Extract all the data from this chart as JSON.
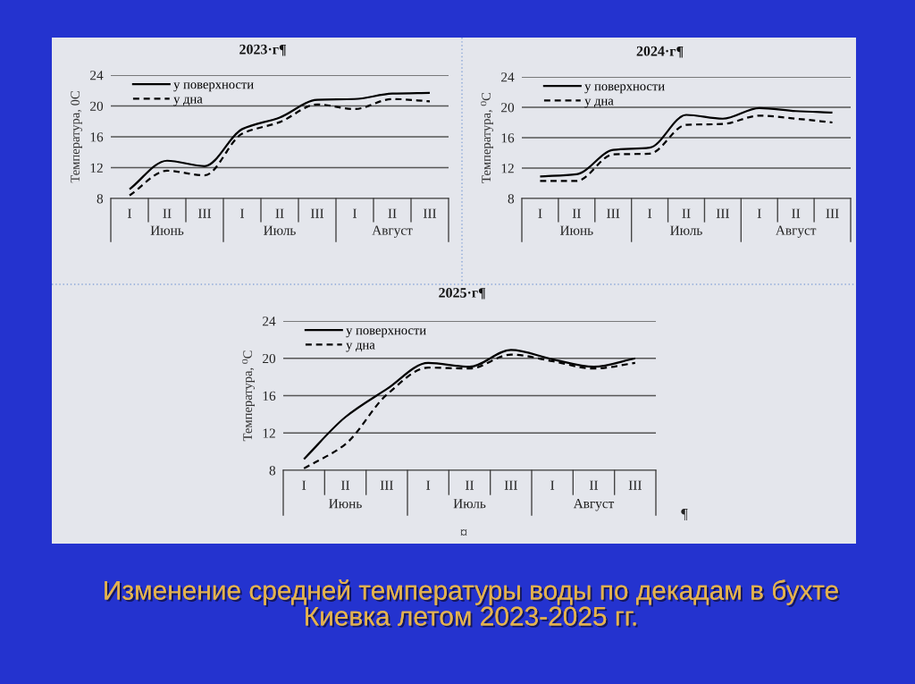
{
  "chart_data": [
    {
      "type": "line",
      "title": "2023·г¶",
      "ylabel": "Температура, 0С",
      "categories": [
        "I",
        "II",
        "III",
        "I",
        "II",
        "III",
        "I",
        "II",
        "III"
      ],
      "series": [
        {
          "name": "у поверхности",
          "color": "#000000",
          "line_style": "solid",
          "values": [
            9.2,
            12.9,
            12.2,
            17.0,
            18.5,
            20.8,
            20.9,
            21.6,
            21.7
          ]
        },
        {
          "name": "у дна",
          "color": "#000000",
          "line_style": "dashed",
          "values": [
            8.4,
            11.6,
            11.0,
            16.4,
            17.9,
            20.2,
            19.6,
            20.9,
            20.6
          ]
        }
      ],
      "ylim": [
        8,
        24
      ],
      "yticks": [
        8,
        12,
        16,
        20,
        24
      ],
      "grid": "y",
      "legend": "top left",
      "annotations": [
        "Июнь",
        "Июль",
        "Август"
      ]
    },
    {
      "type": "line",
      "title": "2024·г¶",
      "ylabel": "Температура, ⁰С",
      "categories": [
        "I",
        "II",
        "III",
        "I",
        "II",
        "III",
        "I",
        "II",
        "III"
      ],
      "series": [
        {
          "name": "у поверхности",
          "color": "#000000",
          "line_style": "solid",
          "values": [
            10.9,
            11.2,
            14.4,
            14.7,
            19.0,
            18.5,
            19.9,
            19.5,
            19.3
          ]
        },
        {
          "name": "у дна",
          "color": "#000000",
          "line_style": "dashed",
          "values": [
            10.3,
            10.3,
            13.8,
            13.9,
            17.7,
            17.8,
            18.9,
            18.5,
            18.0
          ]
        }
      ],
      "ylim": [
        8,
        24
      ],
      "yticks": [
        8,
        12,
        16,
        20,
        24
      ],
      "grid": "y",
      "legend": "top left",
      "annotations": [
        "Июнь",
        "Июль",
        "Август"
      ]
    },
    {
      "type": "line",
      "title": "2025·г¶",
      "ylabel": "Температура, ⁰С",
      "categories": [
        "I",
        "II",
        "III",
        "I",
        "II",
        "III",
        "I",
        "II",
        "III"
      ],
      "series": [
        {
          "name": "у поверхности",
          "color": "#000000",
          "line_style": "solid",
          "values": [
            9.2,
            13.7,
            16.7,
            19.5,
            19.1,
            20.9,
            19.9,
            19.1,
            20.0
          ]
        },
        {
          "name": "у дна",
          "color": "#000000",
          "line_style": "dashed",
          "values": [
            8.2,
            10.8,
            16.1,
            19.0,
            18.9,
            20.4,
            19.7,
            18.9,
            19.5
          ]
        }
      ],
      "ylim": [
        8,
        24
      ],
      "yticks": [
        8,
        12,
        16,
        20,
        24
      ],
      "grid": "y",
      "legend": "top left",
      "annotations": [
        "Июнь",
        "Июль",
        "Август",
        "¶",
        "¤",
        "Изменение средней температуры воды по декадам в бухте\nКиевка летом 2023-2025 гг."
      ]
    }
  ]
}
